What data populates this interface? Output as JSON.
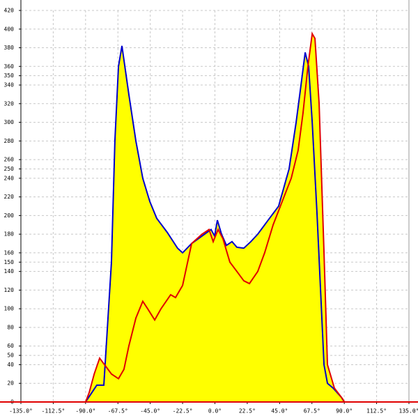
{
  "chart_data": {
    "type": "area",
    "xlim": [
      -135,
      135
    ],
    "xticks": [
      {
        "value": -135,
        "label": "-135.0°"
      },
      {
        "value": -112.5,
        "label": "-112.5°"
      },
      {
        "value": -90,
        "label": "-90.0°"
      },
      {
        "value": -67.5,
        "label": "-67.5°"
      },
      {
        "value": -45,
        "label": "-45.0°"
      },
      {
        "value": -22.5,
        "label": "-22.5°"
      },
      {
        "value": 0,
        "label": "0.0°"
      },
      {
        "value": 22.5,
        "label": "22.5°"
      },
      {
        "value": 45,
        "label": "45.0°"
      },
      {
        "value": 67.5,
        "label": "67.5°"
      },
      {
        "value": 90,
        "label": "90.0°"
      },
      {
        "value": 112.5,
        "label": "112.5°"
      },
      {
        "value": 135,
        "label": "135.0°"
      }
    ],
    "ylim": [
      0,
      420
    ],
    "yticks": [
      0,
      20,
      40,
      50,
      60,
      80,
      100,
      120,
      140,
      150,
      160,
      180,
      200,
      220,
      240,
      250,
      260,
      280,
      300,
      320,
      340,
      350,
      360,
      380,
      400,
      420
    ],
    "grid": true,
    "fill_color": "#ffff00",
    "series": [
      {
        "color": "#0000cc",
        "x": [
          -90,
          -82.2,
          -77.3,
          -74,
          -72,
          -69.6,
          -67.1,
          -64.7,
          -59.9,
          -55,
          -50.2,
          -45.3,
          -40.5,
          -33.2,
          -26,
          -22.5,
          -16.2,
          -9,
          -2.7,
          -0.2,
          1.7,
          4.6,
          8,
          11.9,
          15.3,
          20.1,
          25,
          29.8,
          37,
          44.3,
          51.6,
          56.5,
          59.9,
          62.8,
          65.2,
          67.7,
          71.1,
          73.5,
          75.9,
          78.3,
          82.2,
          88,
          90
        ],
        "values": [
          0,
          18,
          18,
          100,
          150,
          280,
          360,
          382,
          330,
          280,
          240,
          215,
          197,
          182,
          165,
          160,
          170,
          178,
          185,
          178,
          195,
          180,
          168,
          172,
          166,
          165,
          172,
          180,
          195,
          210,
          250,
          300,
          340,
          375,
          360,
          300,
          200,
          120,
          40,
          20,
          15,
          5,
          0
        ]
      },
      {
        "color": "#e00000",
        "x": [
          -90,
          -87.5,
          -84,
          -80.2,
          -76.8,
          -72,
          -67.1,
          -63.3,
          -59.9,
          -55,
          -50.2,
          -46.8,
          -41.9,
          -37.5,
          -30.8,
          -27.4,
          -22.5,
          -16.2,
          -9,
          -4.1,
          -1.2,
          2.2,
          5.6,
          10.4,
          15.3,
          20.1,
          24,
          29.8,
          34.6,
          40.5,
          46.8,
          53.1,
          57.9,
          61.3,
          64.7,
          67.7,
          69.6,
          72.5,
          75.9,
          78.3,
          83.1,
          89,
          90
        ],
        "values": [
          0,
          10,
          30,
          47,
          40,
          30,
          25,
          35,
          60,
          90,
          108,
          100,
          88,
          100,
          115,
          112,
          125,
          170,
          180,
          185,
          172,
          185,
          175,
          150,
          140,
          130,
          127,
          140,
          160,
          190,
          215,
          240,
          270,
          310,
          360,
          395,
          390,
          320,
          160,
          40,
          15,
          3,
          0
        ]
      }
    ]
  }
}
